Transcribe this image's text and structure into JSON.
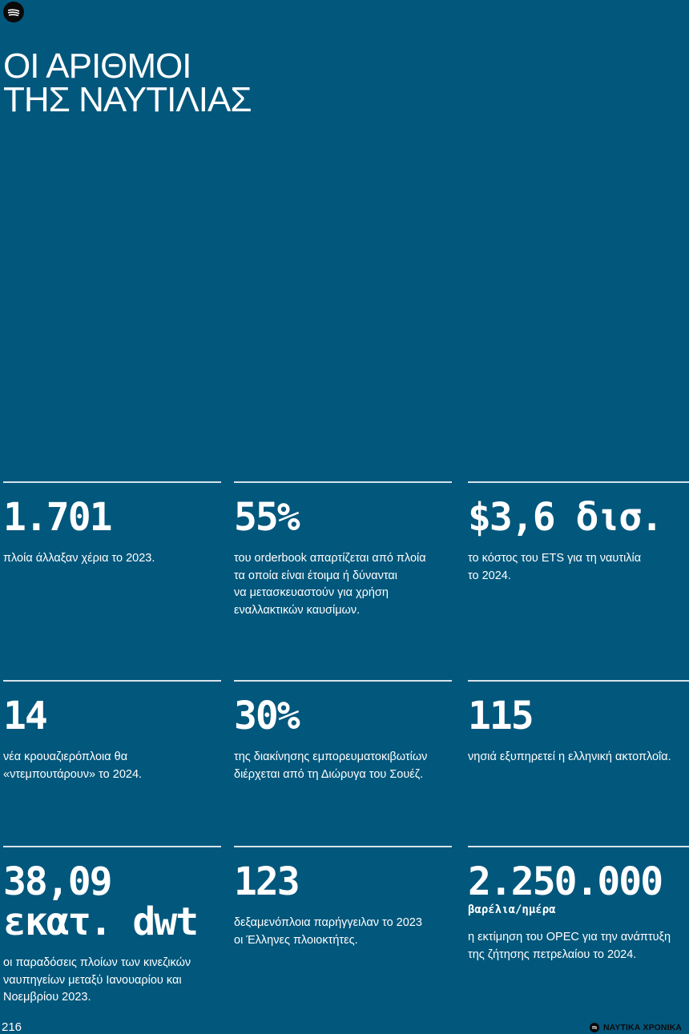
{
  "title": {
    "line1": "ΟΙ ΑΡΙΘΜΟΙ",
    "line2": "ΤΗΣ ΝΑΥΤΙΛΙΑΣ"
  },
  "stats": [
    {
      "value": "1.701",
      "desc": [
        "πλοία άλλαξαν χέρια το 2023."
      ]
    },
    {
      "value": "55%",
      "desc": [
        "του orderbook απαρτίζεται από πλοία",
        "τα οποία είναι έτοιμα ή δύνανται",
        "να μετασκευαστούν για χρήση",
        "εναλλακτικών καυσίμων."
      ]
    },
    {
      "value": "$3,6 δισ.",
      "desc": [
        "το κόστος του ETS για τη ναυτιλία",
        "το 2024."
      ]
    },
    {
      "value": "14",
      "desc": [
        "νέα κρουαζιερόπλοια θα",
        "«ντεμπουτάρουν» το 2024."
      ]
    },
    {
      "value": "30%",
      "desc": [
        "της διακίνησης εμπορευματοκιβωτίων",
        "διέρχεται από τη Διώρυγα του Σουέζ."
      ]
    },
    {
      "value": "115",
      "desc": [
        "νησιά εξυπηρετεί η ελληνική ακτοπλοΐα."
      ]
    },
    {
      "value_line1": "38,09",
      "value_line2": "εκατ. dwt",
      "desc": [
        "οι παραδόσεις πλοίων των κινεζικών",
        "ναυπηγείων μεταξύ Ιανουαρίου και",
        "Νοεμβρίου 2023."
      ]
    },
    {
      "value": "123",
      "desc": [
        "δεξαμενόπλοια παρήγγειλαν το 2023",
        "οι Έλληνες πλοιοκτήτες."
      ]
    },
    {
      "value": "2.250.000",
      "unit": "βαρέλια/ημέρα",
      "desc": [
        "η εκτίμηση του OPEC για την ανάπτυξη",
        "της ζήτησης πετρελαίου το 2024."
      ]
    }
  ],
  "footer": {
    "page_number": "216",
    "brand": "ΝΑΥΤΙΚΑ ΧΡΟΝΙΚΑ"
  },
  "colors": {
    "background": "#02577c",
    "text": "#ffffff",
    "rule": "#d7e3ea"
  },
  "icons": {
    "logo": "naftika-chronika-logo-icon"
  }
}
